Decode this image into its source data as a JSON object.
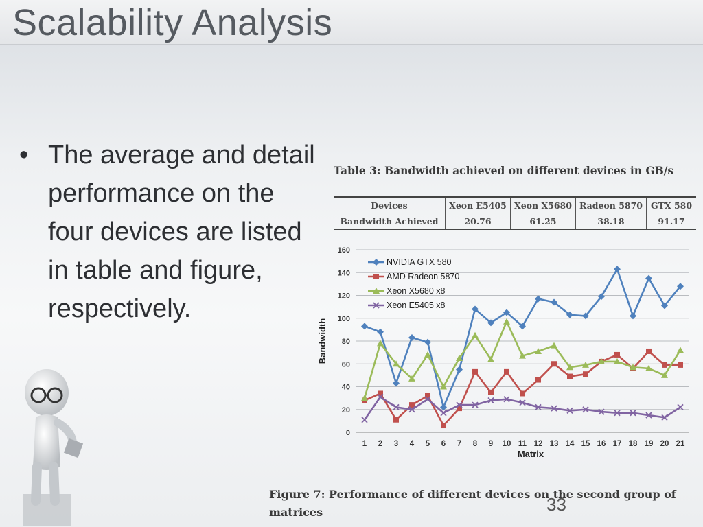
{
  "slide": {
    "title": "Scalability Analysis",
    "bullet": "The average and detail performance on the four devices are listed in table and figure, respectively.",
    "page_number": "33"
  },
  "table": {
    "caption": "Table 3:  Bandwidth achieved on different devices in GB/s",
    "headers": [
      "Devices",
      "Xeon E5405",
      "Xeon X5680",
      "Radeon 5870",
      "GTX 580"
    ],
    "row_label": "Bandwidth Achieved",
    "values": [
      "20.76",
      "61.25",
      "38.18",
      "91.17"
    ]
  },
  "figure_caption": "Figure 7:  Performance of different devices on the second group of matrices",
  "chart_data": {
    "type": "line",
    "title": "",
    "xlabel": "Matrix",
    "ylabel": "Bandwidth",
    "x": [
      1,
      2,
      3,
      4,
      5,
      6,
      7,
      8,
      9,
      10,
      11,
      12,
      13,
      14,
      15,
      16,
      17,
      18,
      19,
      20,
      21
    ],
    "ylim": [
      0,
      160
    ],
    "yticks": [
      0,
      20,
      40,
      60,
      80,
      100,
      120,
      140,
      160
    ],
    "grid": true,
    "legend_position": "top-left",
    "series": [
      {
        "name": "NVIDIA GTX 580",
        "color": "#4f81bd",
        "marker": "diamond",
        "values": [
          93,
          88,
          43,
          83,
          79,
          22,
          55,
          108,
          96,
          105,
          93,
          117,
          114,
          103,
          102,
          119,
          143,
          102,
          135,
          111,
          128
        ]
      },
      {
        "name": "AMD Radeon 5870",
        "color": "#c0504d",
        "marker": "square",
        "values": [
          28,
          34,
          11,
          24,
          32,
          6,
          21,
          53,
          35,
          53,
          34,
          46,
          60,
          49,
          51,
          62,
          68,
          56,
          71,
          59,
          59
        ]
      },
      {
        "name": "Xeon X5680 x8",
        "color": "#9bbb59",
        "marker": "triangle",
        "values": [
          30,
          78,
          60,
          47,
          68,
          40,
          65,
          85,
          64,
          97,
          67,
          71,
          76,
          57,
          59,
          62,
          62,
          57,
          56,
          50,
          72
        ]
      },
      {
        "name": "Xeon E5405 x8",
        "color": "#8064a2",
        "marker": "x",
        "values": [
          11,
          31,
          22,
          20,
          29,
          17,
          24,
          24,
          28,
          29,
          26,
          22,
          21,
          19,
          20,
          18,
          17,
          17,
          15,
          13,
          22
        ]
      }
    ]
  }
}
